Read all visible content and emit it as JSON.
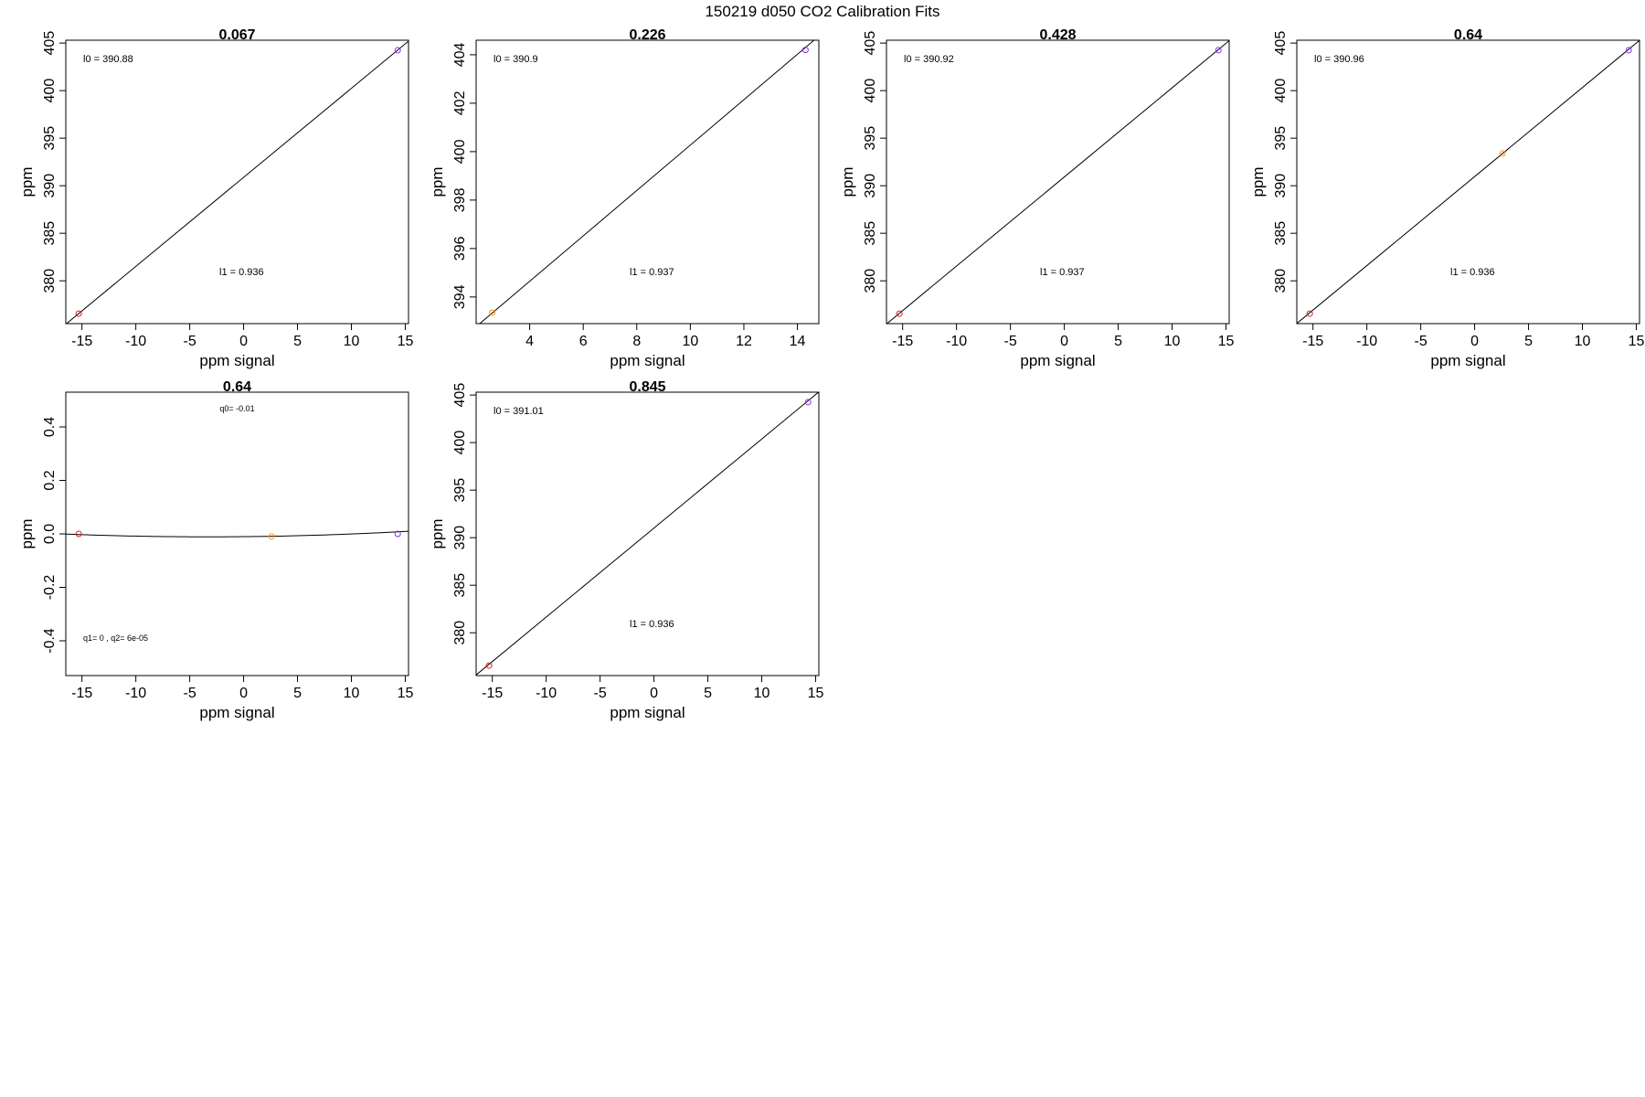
{
  "figure": {
    "title": "150219   d050   CO2 Calibration Fits"
  },
  "colors": {
    "low_standard": "#e41a1c",
    "mid_standard": "#ff9900",
    "high_standard": "#8a2be2",
    "line": "#000000"
  },
  "chart_data": [
    {
      "type": "scatter",
      "title": "0.067",
      "xlabel": "ppm signal",
      "ylabel": "ppm",
      "xlim": [
        -16.5,
        15.3
      ],
      "ylim": [
        375.5,
        405.3
      ],
      "xticks": [
        -15,
        -10,
        -5,
        0,
        5,
        10,
        15
      ],
      "yticks": [
        380,
        385,
        390,
        395,
        400,
        405
      ],
      "points": [
        {
          "x": -15.3,
          "y": 376.55,
          "color": "low_standard"
        },
        {
          "x": 14.3,
          "y": 404.25,
          "color": "high_standard"
        }
      ],
      "fit": {
        "kind": "linear",
        "intercept": 390.88,
        "slope": 0.936
      },
      "annotations": [
        {
          "label": "l0 = 390.88",
          "pos": "top-left"
        },
        {
          "label": "l1 = 0.936",
          "pos": "lower-middle"
        }
      ]
    },
    {
      "type": "scatter",
      "title": "0.226",
      "xlabel": "ppm signal",
      "ylabel": "ppm",
      "xlim": [
        2.0,
        14.8
      ],
      "ylim": [
        392.9,
        404.6
      ],
      "xticks": [
        4,
        6,
        8,
        10,
        12,
        14
      ],
      "yticks": [
        394,
        396,
        398,
        400,
        402,
        404
      ],
      "points": [
        {
          "x": 2.6,
          "y": 393.35,
          "color": "mid_standard"
        },
        {
          "x": 14.3,
          "y": 404.2,
          "color": "high_standard"
        }
      ],
      "fit": {
        "kind": "linear",
        "intercept": 390.9,
        "slope": 0.937
      },
      "annotations": [
        {
          "label": "l0 = 390.9",
          "pos": "top-left"
        },
        {
          "label": "l1 = 0.937",
          "pos": "lower-middle"
        }
      ]
    },
    {
      "type": "scatter",
      "title": "0.428",
      "xlabel": "ppm signal",
      "ylabel": "ppm",
      "xlim": [
        -16.5,
        15.3
      ],
      "ylim": [
        375.5,
        405.3
      ],
      "xticks": [
        -15,
        -10,
        -5,
        0,
        5,
        10,
        15
      ],
      "yticks": [
        380,
        385,
        390,
        395,
        400,
        405
      ],
      "points": [
        {
          "x": -15.3,
          "y": 376.55,
          "color": "low_standard"
        },
        {
          "x": 14.3,
          "y": 404.25,
          "color": "high_standard"
        }
      ],
      "fit": {
        "kind": "linear",
        "intercept": 390.92,
        "slope": 0.937
      },
      "annotations": [
        {
          "label": "l0 = 390.92",
          "pos": "top-left"
        },
        {
          "label": "l1 = 0.937",
          "pos": "lower-middle"
        }
      ]
    },
    {
      "type": "scatter",
      "title": "0.64",
      "xlabel": "ppm signal",
      "ylabel": "ppm",
      "xlim": [
        -16.5,
        15.3
      ],
      "ylim": [
        375.5,
        405.3
      ],
      "xticks": [
        -15,
        -10,
        -5,
        0,
        5,
        10,
        15
      ],
      "yticks": [
        380,
        385,
        390,
        395,
        400,
        405
      ],
      "points": [
        {
          "x": -15.3,
          "y": 376.55,
          "color": "low_standard"
        },
        {
          "x": 2.6,
          "y": 393.4,
          "color": "mid_standard"
        },
        {
          "x": 14.3,
          "y": 404.25,
          "color": "high_standard"
        }
      ],
      "fit": {
        "kind": "linear",
        "intercept": 390.96,
        "slope": 0.936
      },
      "annotations": [
        {
          "label": "l0 = 390.96",
          "pos": "top-left"
        },
        {
          "label": "l1 = 0.936",
          "pos": "lower-middle"
        }
      ]
    },
    {
      "type": "scatter",
      "title": "0.64",
      "xlabel": "ppm signal",
      "ylabel": "ppm",
      "xlim": [
        -16.5,
        15.3
      ],
      "ylim": [
        -0.53,
        0.53
      ],
      "xticks": [
        -15,
        -10,
        -5,
        0,
        5,
        10,
        15
      ],
      "yticks": [
        -0.4,
        -0.2,
        0.0,
        0.2,
        0.4
      ],
      "ytick_labels": [
        "-0.4",
        "-0.2",
        "0.0",
        "0.2",
        "0.4"
      ],
      "points": [
        {
          "x": -15.3,
          "y": 0.0,
          "color": "low_standard"
        },
        {
          "x": 2.6,
          "y": -0.01,
          "color": "mid_standard"
        },
        {
          "x": 14.3,
          "y": 0.0,
          "color": "high_standard"
        }
      ],
      "fit": {
        "kind": "quadratic",
        "q0": -0.0104,
        "q1": 0.0004,
        "q2": 6e-05
      },
      "annotations": [
        {
          "label": "q0= -0.01",
          "pos": "top-middle",
          "small": true
        },
        {
          "label": "q1= 0 , q2= 6e-05",
          "pos": "bottom-left",
          "small": true
        }
      ]
    },
    {
      "type": "scatter",
      "title": "0.845",
      "xlabel": "ppm signal",
      "ylabel": "ppm",
      "xlim": [
        -16.5,
        15.3
      ],
      "ylim": [
        375.5,
        405.3
      ],
      "xticks": [
        -15,
        -10,
        -5,
        0,
        5,
        10,
        15
      ],
      "yticks": [
        380,
        385,
        390,
        395,
        400,
        405
      ],
      "points": [
        {
          "x": -15.3,
          "y": 376.55,
          "color": "low_standard"
        },
        {
          "x": 14.3,
          "y": 404.25,
          "color": "high_standard"
        }
      ],
      "fit": {
        "kind": "linear",
        "intercept": 391.01,
        "slope": 0.936
      },
      "annotations": [
        {
          "label": "l0 = 391.01",
          "pos": "top-left"
        },
        {
          "label": "l1 = 0.936",
          "pos": "lower-middle"
        }
      ]
    }
  ]
}
